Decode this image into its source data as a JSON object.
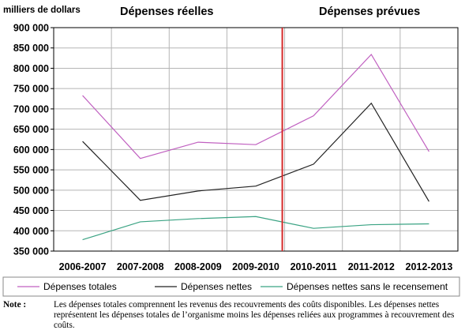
{
  "chart_data": {
    "type": "line",
    "unit_label": "milliers de dollars",
    "sections": [
      "Dépenses réelles",
      "Dépenses prévues"
    ],
    "categories": [
      "2006-2007",
      "2007-2008",
      "2008-2009",
      "2009-2010",
      "2010-2011",
      "2011-2012",
      "2012-2013"
    ],
    "ylim": [
      350000,
      900000
    ],
    "yticks": [
      {
        "value": 900000,
        "label": "900 000"
      },
      {
        "value": 850000,
        "label": "850 000"
      },
      {
        "value": 800000,
        "label": "800 000"
      },
      {
        "value": 750000,
        "label": "750 000"
      },
      {
        "value": 700000,
        "label": "700 000"
      },
      {
        "value": 650000,
        "label": "650 000"
      },
      {
        "value": 600000,
        "label": "600 000"
      },
      {
        "value": 550000,
        "label": "550 000"
      },
      {
        "value": 500000,
        "label": "500 000"
      },
      {
        "value": 450000,
        "label": "450 000"
      },
      {
        "value": 400000,
        "label": "400 000"
      },
      {
        "value": 350000,
        "label": "350 000"
      }
    ],
    "grid": true,
    "legend_position": "bottom",
    "divider_color": "#d62a2a",
    "series": [
      {
        "name": "Dépenses totales",
        "color": "#c060c0",
        "values": [
          733000,
          578000,
          618000,
          612000,
          683000,
          834000,
          595000
        ]
      },
      {
        "name": "Dépenses nettes",
        "color": "#222222",
        "values": [
          620000,
          475000,
          498000,
          510000,
          564000,
          714000,
          472000
        ]
      },
      {
        "name": "Dépenses nettes sans le recensement",
        "color": "#3aa383",
        "values": [
          378000,
          422000,
          430000,
          435000,
          406000,
          415000,
          417000
        ]
      }
    ]
  },
  "note": {
    "label": "Note :",
    "text": "Les dépenses totales comprennent les revenus des recouvrements des coûts disponibles. Les dépenses nettes représentent les dépenses totales de l’organisme moins les dépenses reliées aux programmes à recouvrement des coûts."
  }
}
